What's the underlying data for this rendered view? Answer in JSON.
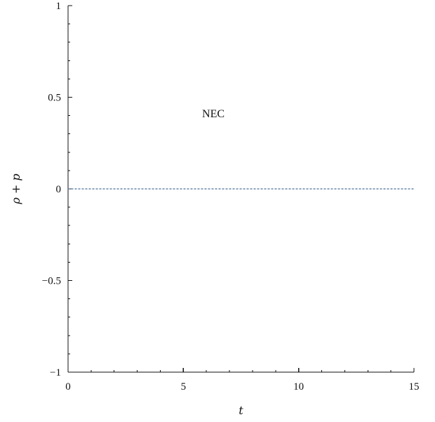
{
  "chart_data": {
    "type": "line",
    "title": "",
    "xlabel": "t",
    "ylabel": "ρ + p",
    "xlim": [
      0,
      15
    ],
    "ylim": [
      -1,
      1
    ],
    "x_ticks": [
      0,
      5,
      10,
      15
    ],
    "y_ticks": [
      1,
      0.5,
      0,
      -0.5,
      -1
    ],
    "x_tick_labels": [
      "0",
      "5",
      "10",
      "15"
    ],
    "y_tick_labels": [
      "1",
      "0.5",
      "0",
      "−0.5",
      "−1"
    ],
    "x_minor_tick_step": 1,
    "y_minor_tick_step": 0.1,
    "grid": false,
    "series": [
      {
        "style": "dotted",
        "color": "#4a6f9a",
        "x": [
          0,
          15
        ],
        "y": [
          0,
          0
        ]
      }
    ],
    "annotations": [
      {
        "text": "NEC",
        "x": 6.3,
        "y": 0.39
      }
    ]
  }
}
